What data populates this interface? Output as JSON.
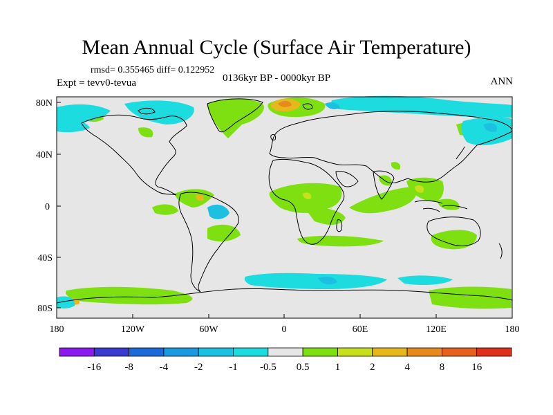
{
  "title": "Mean Annual Cycle (Surface Air Temperature)",
  "stats": "rmsd= 0.355465 diff= 0.122952",
  "experiment": "Expt = tevv0-tevua",
  "period": "0136kyr BP - 0000kyr BP",
  "season": "ANN",
  "lat_labels": [
    "80N",
    "40N",
    "0",
    "40S",
    "80S"
  ],
  "lon_labels": [
    "180",
    "120W",
    "60W",
    "0",
    "60E",
    "120E",
    "180"
  ],
  "colorbar": {
    "labels": [
      "-16",
      "-8",
      "-4",
      "-2",
      "-1",
      "-0.5",
      "0.5",
      "1",
      "2",
      "4",
      "8",
      "16"
    ],
    "colors": [
      "#8a1aee",
      "#3a3ad0",
      "#1c6ad8",
      "#1c9ae0",
      "#1cc0e0",
      "#1cdce0",
      "#e6e6e6",
      "#7ee010",
      "#c8e01c",
      "#e6b81c",
      "#e68a1c",
      "#e6621c",
      "#e0301c"
    ]
  },
  "colors": {
    "ocean_land_neutral": "#e6e6e6",
    "coastline": "#000000"
  }
}
